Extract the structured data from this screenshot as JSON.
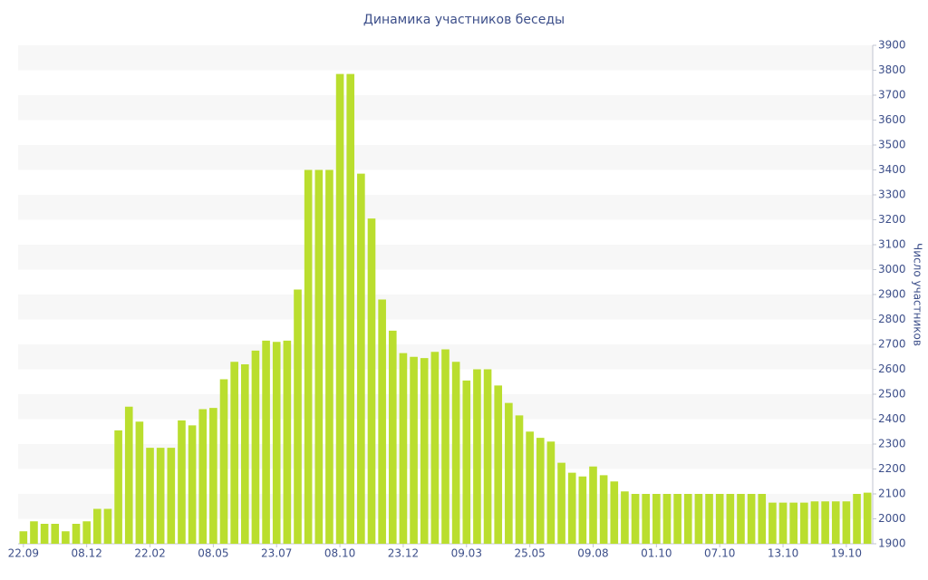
{
  "chart_data": {
    "type": "bar",
    "title": "Динамика участников беседы",
    "y_label": "Число участников",
    "categories": [
      "22.09",
      null,
      null,
      null,
      null,
      null,
      "08.12",
      null,
      null,
      null,
      null,
      null,
      "22.02",
      null,
      null,
      null,
      null,
      null,
      "08.05",
      null,
      null,
      null,
      null,
      null,
      "23.07",
      null,
      null,
      null,
      null,
      null,
      "08.10",
      null,
      null,
      null,
      null,
      null,
      "23.12",
      null,
      null,
      null,
      null,
      null,
      "09.03",
      null,
      null,
      null,
      null,
      null,
      "25.05",
      null,
      null,
      null,
      null,
      null,
      "09.08",
      null,
      null,
      null,
      null,
      null,
      "01.10",
      null,
      null,
      null,
      null,
      null,
      "07.10",
      null,
      null,
      null,
      null,
      null,
      "13.10",
      null,
      null,
      null,
      null,
      null,
      "19.10",
      null,
      null
    ],
    "values": [
      1950,
      1990,
      1980,
      1980,
      1950,
      1980,
      1990,
      2040,
      2040,
      2355,
      2450,
      2390,
      2285,
      2285,
      2285,
      2395,
      2375,
      2440,
      2445,
      2560,
      2630,
      2620,
      2675,
      2715,
      2710,
      2715,
      2920,
      3400,
      3400,
      3400,
      3785,
      3785,
      3385,
      3205,
      2880,
      2755,
      2665,
      2650,
      2645,
      2670,
      2680,
      2630,
      2555,
      2600,
      2600,
      2535,
      2465,
      2415,
      2350,
      2325,
      2310,
      2225,
      2185,
      2170,
      2210,
      2175,
      2150,
      2110,
      2100,
      2100,
      2100,
      2100,
      2100,
      2100,
      2100,
      2100,
      2100,
      2100,
      2100,
      2100,
      2100,
      2065,
      2065,
      2065,
      2065,
      2070,
      2070,
      2070,
      2070,
      2100,
      2105
    ],
    "color": "#bade2e",
    "ylim": [
      1900,
      3900
    ],
    "yticks": [
      1900,
      2000,
      2100,
      2200,
      2300,
      2400,
      2500,
      2600,
      2700,
      2800,
      2900,
      3000,
      3100,
      3200,
      3300,
      3400,
      3500,
      3600,
      3700,
      3800,
      3900
    ],
    "grid": true,
    "y_axis_side": "right"
  }
}
